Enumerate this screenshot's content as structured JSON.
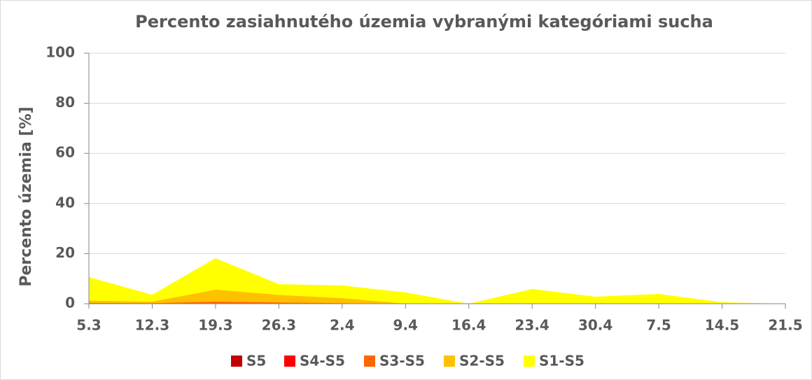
{
  "chart_data": {
    "type": "area",
    "title": "Percento zasiahnutého územia vybranými kategóriami sucha",
    "y_label": "Percento územia  [%]",
    "categories": [
      "5.3",
      "12.3",
      "19.3",
      "26.3",
      "2.4",
      "9.4",
      "16.4",
      "23.4",
      "30.4",
      "7.5",
      "14.5",
      "21.5"
    ],
    "series": [
      {
        "name": "S5",
        "color": "#c00000",
        "values": [
          0,
          0,
          0,
          0,
          0,
          0,
          0,
          0,
          0,
          0,
          0,
          0
        ]
      },
      {
        "name": "S4-S5",
        "color": "#ff0000",
        "values": [
          0,
          0,
          0,
          0,
          0,
          0,
          0,
          0,
          0,
          0,
          0,
          0
        ]
      },
      {
        "name": "S3-S5",
        "color": "#ff6600",
        "values": [
          0.3,
          0.2,
          0.8,
          0.5,
          0.2,
          0,
          0,
          0,
          0,
          0,
          0,
          0
        ]
      },
      {
        "name": "S2-S5",
        "color": "#ffc000",
        "values": [
          1.2,
          0.8,
          5.6,
          3.5,
          2.2,
          0,
          0,
          0,
          0,
          0,
          0,
          0
        ]
      },
      {
        "name": "S1-S5",
        "color": "#ffff00",
        "values": [
          10.6,
          3.6,
          18.2,
          7.8,
          7.3,
          4.5,
          0,
          5.9,
          2.8,
          3.9,
          0.6,
          0
        ]
      }
    ],
    "ylim": [
      0,
      100
    ],
    "yticks": [
      0,
      20,
      40,
      60,
      80,
      100
    ],
    "grid": true,
    "legend": "bottom"
  }
}
